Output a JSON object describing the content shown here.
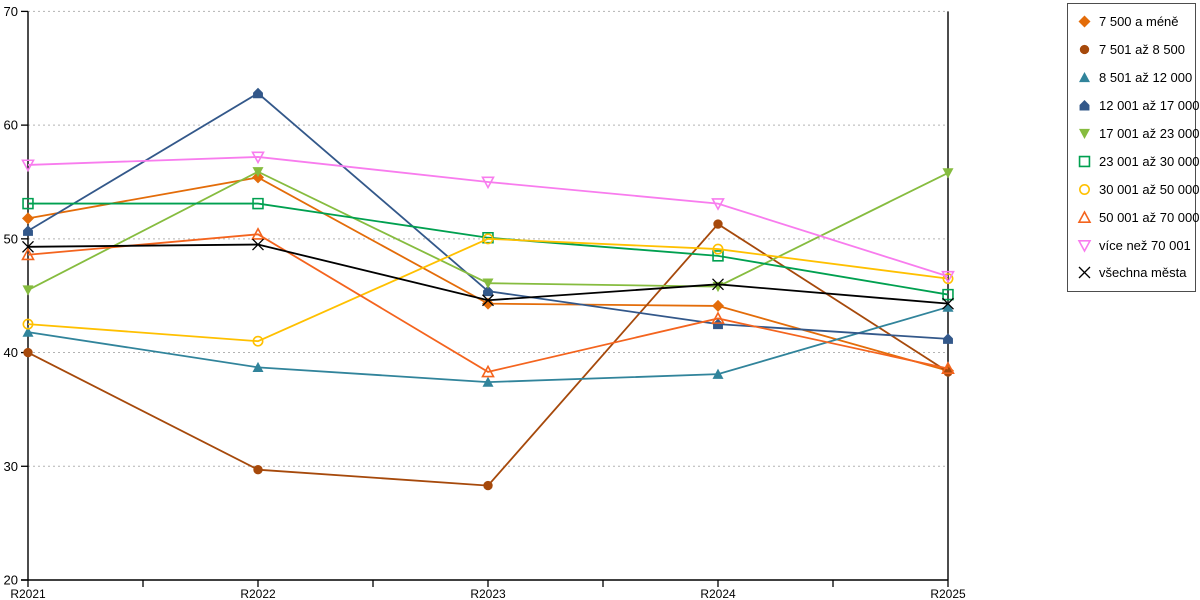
{
  "chart_data": {
    "type": "line",
    "title": "",
    "xlabel": "",
    "ylabel": "",
    "categories": [
      "R2021",
      "R2022",
      "R2023",
      "R2024",
      "R2025"
    ],
    "ylim": [
      20,
      70
    ],
    "yticks": [
      20,
      30,
      40,
      50,
      60,
      70
    ],
    "grid": "horizontal-dashed",
    "legend_position": "top-right-outside",
    "series": [
      {
        "name": "7 500 a méně",
        "color": "#e36c09",
        "marker": "diamond",
        "fill": "filled",
        "values": [
          51.8,
          55.4,
          44.3,
          44.1,
          38.4
        ]
      },
      {
        "name": "7 501 až 8 500",
        "color": "#a6490b",
        "marker": "circle",
        "fill": "filled",
        "values": [
          40.0,
          29.7,
          28.3,
          51.3,
          38.3
        ]
      },
      {
        "name": "8 501 až 12 000",
        "color": "#31849b",
        "marker": "triangle-up",
        "fill": "filled",
        "values": [
          41.8,
          38.7,
          37.4,
          38.1,
          44.0
        ]
      },
      {
        "name": "12 001 až 17 000",
        "color": "#33588a",
        "marker": "house",
        "fill": "filled",
        "values": [
          50.7,
          62.8,
          45.4,
          42.5,
          41.2
        ]
      },
      {
        "name": "17 001 až 23 000",
        "color": "#86bc3f",
        "marker": "triangle-down",
        "fill": "filled",
        "values": [
          45.5,
          55.9,
          46.1,
          45.8,
          55.8
        ]
      },
      {
        "name": "23 001 až 30 000",
        "color": "#00a050",
        "marker": "square",
        "fill": "open",
        "values": [
          53.1,
          53.1,
          50.1,
          48.5,
          45.1
        ]
      },
      {
        "name": "30 001 až 50 000",
        "color": "#ffc000",
        "marker": "circle",
        "fill": "open",
        "values": [
          42.5,
          41.0,
          50.0,
          49.1,
          46.5
        ]
      },
      {
        "name": "50 001 až 70 000",
        "color": "#f4641e",
        "marker": "triangle-up",
        "fill": "open",
        "values": [
          48.6,
          50.4,
          38.3,
          43.0,
          38.6
        ]
      },
      {
        "name": "více než 70 001",
        "color": "#f87cee",
        "marker": "triangle-down",
        "fill": "open",
        "values": [
          56.5,
          57.2,
          55.0,
          53.1,
          46.7
        ]
      },
      {
        "name": "všechna města",
        "color": "#000000",
        "marker": "x-cross",
        "fill": "open",
        "values": [
          49.3,
          49.5,
          44.6,
          46.0,
          44.3
        ]
      }
    ]
  },
  "colors": {
    "axis": "#000000",
    "gridline": "#b3b3b3",
    "background": "#ffffff",
    "legend_border": "#4d4d4d",
    "tick_label": "#000000"
  }
}
